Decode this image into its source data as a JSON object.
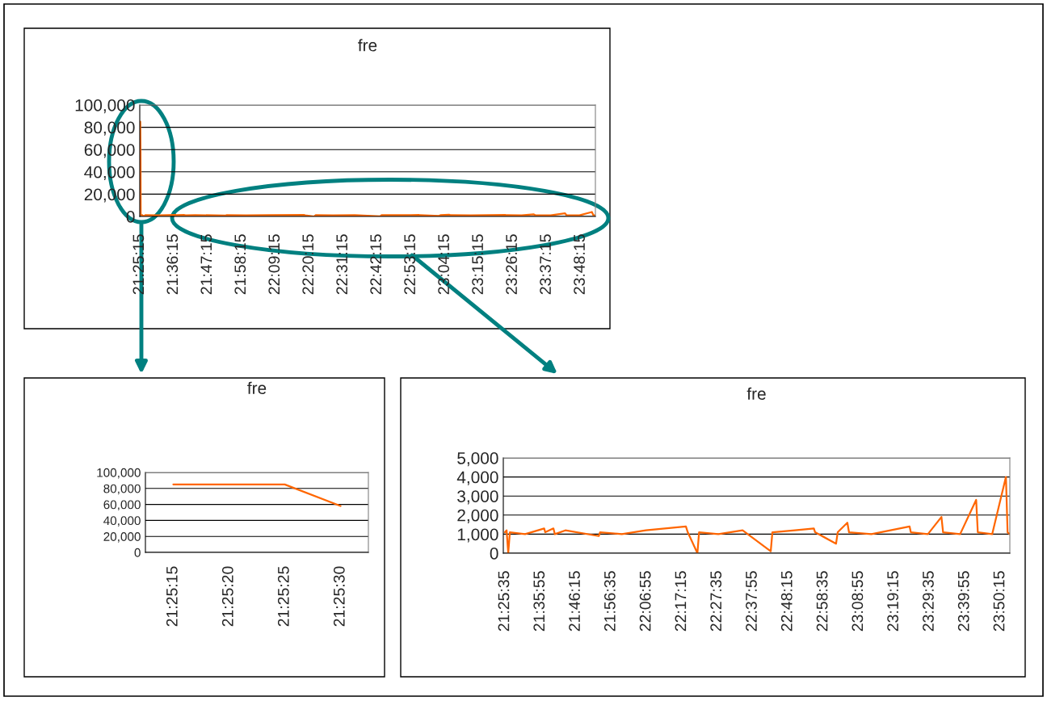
{
  "chart_data": [
    {
      "type": "line",
      "title": "fre",
      "x": [
        21.4208,
        21.4222,
        21.4236,
        21.425,
        21.426,
        21.434,
        21.442,
        21.45,
        21.524,
        21.617,
        21.622,
        21.662,
        21.669,
        21.72,
        21.883,
        21.889,
        21.995,
        22.112,
        22.307,
        22.316,
        22.363,
        22.371,
        22.465,
        22.583,
        22.72,
        22.728,
        22.838,
        22.93,
        22.936,
        23.038,
        23.046,
        23.093,
        23.101,
        23.21,
        23.396,
        23.402,
        23.485,
        23.551,
        23.559,
        23.642,
        23.72,
        23.728,
        23.798,
        23.865,
        23.873,
        23.884
      ],
      "series": [
        {
          "color": "#ff6600",
          "values": [
            85000,
            85000,
            85000,
            58000,
            1100,
            1200,
            0,
            1100,
            1000,
            1300,
            1100,
            1300,
            1000,
            1200,
            900,
            1100,
            1000,
            1200,
            1400,
            1100,
            0,
            1100,
            1000,
            1200,
            100,
            1100,
            1200,
            1300,
            1100,
            500,
            1100,
            1600,
            1100,
            1000,
            1400,
            1100,
            1000,
            1900,
            1100,
            1000,
            2800,
            1100,
            1000,
            4000,
            1100,
            1000
          ]
        }
      ],
      "xlim": [
        21.4208,
        23.884
      ],
      "ylim": [
        0,
        100000
      ],
      "xticks": [
        {
          "value": 21.4208,
          "label": "21:25:15"
        },
        {
          "value": 21.6042,
          "label": "21:36:15"
        },
        {
          "value": 21.7875,
          "label": "21:47:15"
        },
        {
          "value": 21.9708,
          "label": "21:58:15"
        },
        {
          "value": 22.1542,
          "label": "22:09:15"
        },
        {
          "value": 22.3375,
          "label": "22:20:15"
        },
        {
          "value": 22.5208,
          "label": "22:31:15"
        },
        {
          "value": 22.7042,
          "label": "22:42:15"
        },
        {
          "value": 22.8875,
          "label": "22:53:15"
        },
        {
          "value": 23.0708,
          "label": "23:04:15"
        },
        {
          "value": 23.2542,
          "label": "23:15:15"
        },
        {
          "value": 23.4375,
          "label": "23:26:15"
        },
        {
          "value": 23.6208,
          "label": "23:37:15"
        },
        {
          "value": 23.8042,
          "label": "23:48:15"
        }
      ],
      "yticks": [
        {
          "value": 0,
          "label": "0"
        },
        {
          "value": 20000,
          "label": "20,000"
        },
        {
          "value": 40000,
          "label": "40,000"
        },
        {
          "value": 60000,
          "label": "60,000"
        },
        {
          "value": 80000,
          "label": "80,000"
        },
        {
          "value": 100000,
          "label": "100,000"
        }
      ],
      "grid": "y"
    },
    {
      "type": "line",
      "title": "fre",
      "categories": [
        "21:25:15",
        "21:25:20",
        "21:25:25",
        "21:25:30"
      ],
      "series": [
        {
          "color": "#ff6600",
          "values": [
            85000,
            85000,
            85000,
            58000
          ]
        }
      ],
      "ylim": [
        0,
        100000
      ],
      "yticks": [
        {
          "value": 0,
          "label": "0"
        },
        {
          "value": 20000,
          "label": "20,000"
        },
        {
          "value": 40000,
          "label": "40,000"
        },
        {
          "value": 60000,
          "label": "60,000"
        },
        {
          "value": 80000,
          "label": "80,000"
        },
        {
          "value": 100000,
          "label": "100,000"
        }
      ],
      "grid": "y"
    },
    {
      "type": "line",
      "title": "fre",
      "x": [
        21.426,
        21.434,
        21.442,
        21.45,
        21.524,
        21.617,
        21.622,
        21.662,
        21.669,
        21.72,
        21.883,
        21.889,
        21.995,
        22.112,
        22.307,
        22.316,
        22.363,
        22.371,
        22.465,
        22.583,
        22.72,
        22.728,
        22.838,
        22.93,
        22.936,
        23.038,
        23.046,
        23.093,
        23.101,
        23.21,
        23.396,
        23.402,
        23.485,
        23.551,
        23.559,
        23.642,
        23.72,
        23.728,
        23.798,
        23.865,
        23.873,
        23.884
      ],
      "series": [
        {
          "color": "#ff6600",
          "values": [
            1100,
            1200,
            0,
            1100,
            1000,
            1300,
            1100,
            1300,
            1000,
            1200,
            900,
            1100,
            1000,
            1200,
            1400,
            1100,
            0,
            1100,
            1000,
            1200,
            100,
            1100,
            1200,
            1300,
            1100,
            500,
            1100,
            1600,
            1100,
            1000,
            1400,
            1100,
            1000,
            1900,
            1100,
            1000,
            2800,
            1100,
            1000,
            4000,
            1100,
            1000
          ]
        }
      ],
      "xlim": [
        21.418,
        23.884
      ],
      "ylim": [
        0,
        5000
      ],
      "xticks": [
        {
          "value": 21.4264,
          "label": "21:25:35"
        },
        {
          "value": 21.5986,
          "label": "21:35:55"
        },
        {
          "value": 21.7708,
          "label": "21:46:15"
        },
        {
          "value": 21.9431,
          "label": "21:56:35"
        },
        {
          "value": 22.1153,
          "label": "22:06:55"
        },
        {
          "value": 22.2875,
          "label": "22:17:15"
        },
        {
          "value": 22.4597,
          "label": "22:27:35"
        },
        {
          "value": 22.6319,
          "label": "22:37:55"
        },
        {
          "value": 22.8042,
          "label": "22:48:15"
        },
        {
          "value": 22.9764,
          "label": "22:58:35"
        },
        {
          "value": 23.1486,
          "label": "23:08:55"
        },
        {
          "value": 23.3208,
          "label": "23:19:15"
        },
        {
          "value": 23.4931,
          "label": "23:29:35"
        },
        {
          "value": 23.6653,
          "label": "23:39:55"
        },
        {
          "value": 23.8375,
          "label": "23:50:15"
        }
      ],
      "yticks": [
        {
          "value": 0,
          "label": "0"
        },
        {
          "value": 1000,
          "label": "1,000"
        },
        {
          "value": 2000,
          "label": "2,000"
        },
        {
          "value": 3000,
          "label": "3,000"
        },
        {
          "value": 4000,
          "label": "4,000"
        },
        {
          "value": 5000,
          "label": "5,000"
        }
      ],
      "grid": "y"
    }
  ]
}
